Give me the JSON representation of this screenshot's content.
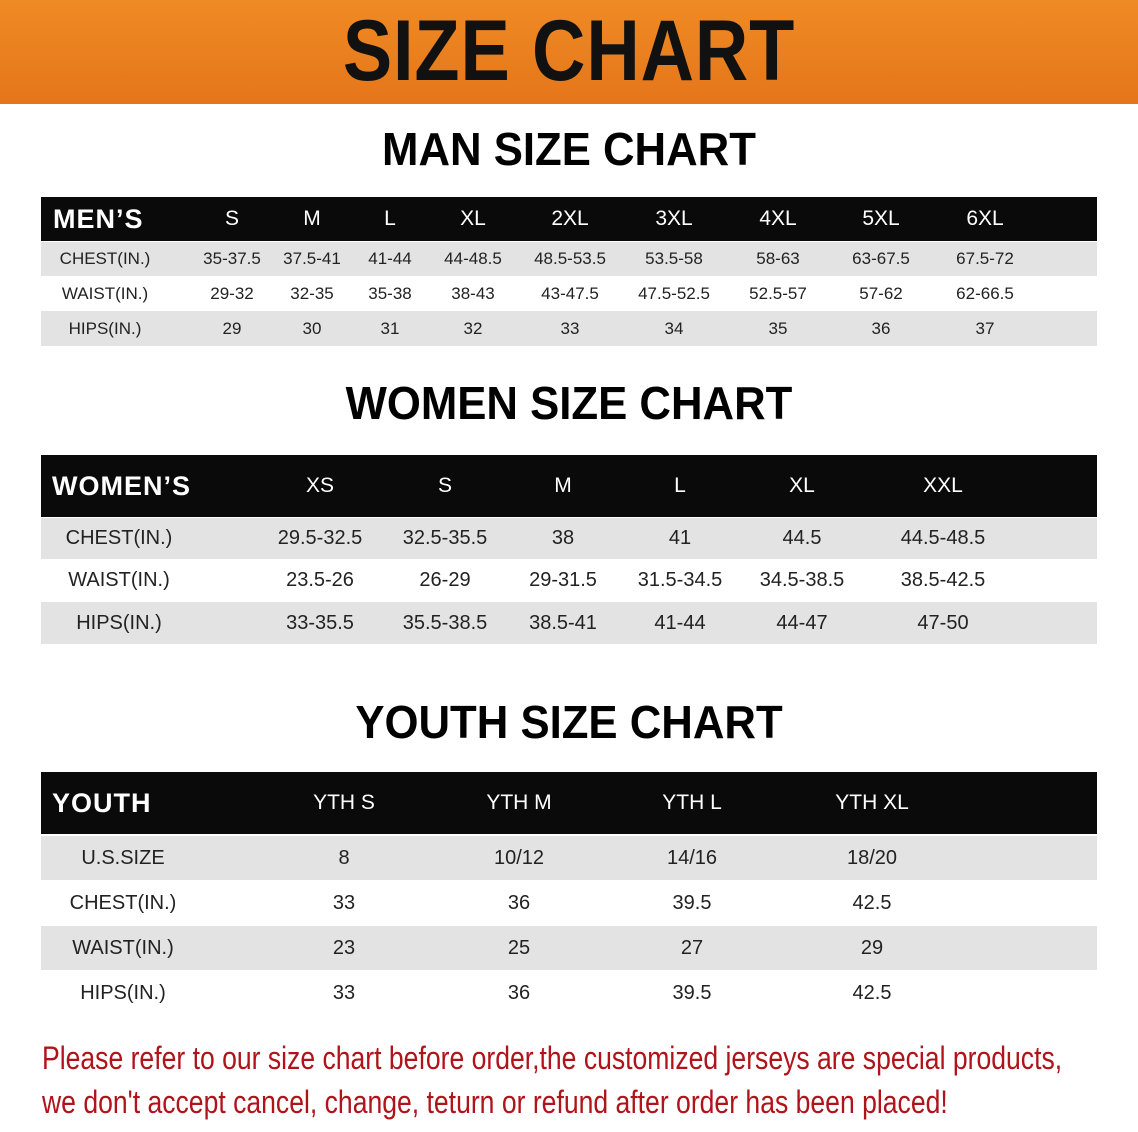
{
  "banner_title": "SIZE CHART",
  "men": {
    "title": "MAN SIZE CHART",
    "header": [
      "MEN’S",
      "S",
      "M",
      "L",
      "XL",
      "2XL",
      "3XL",
      "4XL",
      "5XL",
      "6XL"
    ],
    "rows": [
      [
        "CHEST(IN.)",
        "35-37.5",
        "37.5-41",
        "41-44",
        "44-48.5",
        "48.5-53.5",
        "53.5-58",
        "58-63",
        "63-67.5",
        "67.5-72"
      ],
      [
        "WAIST(IN.)",
        "29-32",
        "32-35",
        "35-38",
        "38-43",
        "43-47.5",
        "47.5-52.5",
        "52.5-57",
        "57-62",
        "62-66.5"
      ],
      [
        "HIPS(IN.)",
        "29",
        "30",
        "31",
        "32",
        "33",
        "34",
        "35",
        "36",
        "37"
      ]
    ]
  },
  "women": {
    "title": "WOMEN SIZE CHART",
    "header": [
      "WOMEN’S",
      "XS",
      "S",
      "M",
      "L",
      "XL",
      "XXL"
    ],
    "rows": [
      [
        "CHEST(IN.)",
        "29.5-32.5",
        "32.5-35.5",
        "38",
        "41",
        "44.5",
        "44.5-48.5"
      ],
      [
        "WAIST(IN.)",
        "23.5-26",
        "26-29",
        "29-31.5",
        "31.5-34.5",
        "34.5-38.5",
        "38.5-42.5"
      ],
      [
        "HIPS(IN.)",
        "33-35.5",
        "35.5-38.5",
        "38.5-41",
        "41-44",
        "44-47",
        "47-50"
      ]
    ]
  },
  "youth": {
    "title": "YOUTH SIZE CHART",
    "header": [
      "YOUTH",
      "YTH S",
      "YTH M",
      "YTH L",
      "YTH XL"
    ],
    "rows": [
      [
        "U.S.SIZE",
        "8",
        "10/12",
        "14/16",
        "18/20"
      ],
      [
        "CHEST(IN.)",
        "33",
        "36",
        "39.5",
        "42.5"
      ],
      [
        "WAIST(IN.)",
        "23",
        "25",
        "27",
        "29"
      ],
      [
        "HIPS(IN.)",
        "33",
        "36",
        "39.5",
        "42.5"
      ]
    ]
  },
  "notice": [
    "Please refer to our size chart before order,the customized jerseys are special products,",
    "we don't accept cancel, change, teturn or refund after order has been placed!"
  ],
  "colors": {
    "banner": "#e8781a",
    "header_row": "#0a0a0a",
    "stripe": "#e3e3e3",
    "notice": "#b0141a"
  }
}
